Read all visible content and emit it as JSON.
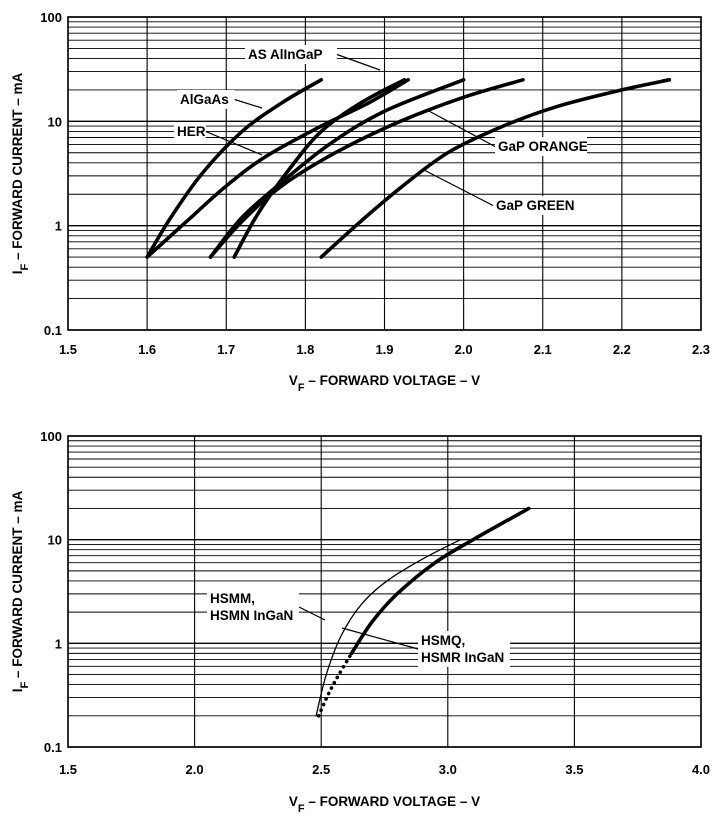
{
  "chart_data": [
    {
      "type": "line",
      "title": "",
      "xlabel": "VF – FORWARD VOLTAGE – V",
      "xlabel_parts": [
        "V",
        "F",
        " – FORWARD VOLTAGE – V"
      ],
      "ylabel": "IF – FORWARD CURRENT – mA",
      "ylabel_parts": [
        "I",
        "F",
        " – FORWARD CURRENT – mA"
      ],
      "xlim": [
        1.5,
        2.3
      ],
      "ylim": [
        0.1,
        100
      ],
      "yscale": "log",
      "grid": true,
      "x_ticks": [
        1.5,
        1.6,
        1.7,
        1.8,
        1.9,
        2.0,
        2.1,
        2.2,
        2.3
      ],
      "x_tick_labels": [
        "1.5",
        "1.6",
        "1.7",
        "1.8",
        "1.9",
        "2.0",
        "2.1",
        "2.2",
        "2.3"
      ],
      "y_ticks": [
        0.1,
        1,
        10,
        100
      ],
      "y_tick_labels": [
        "0.1",
        "1",
        "10",
        "100"
      ],
      "series": [
        {
          "name": "AlGaAs",
          "style": "thick",
          "x": [
            1.6,
            1.63,
            1.67,
            1.72,
            1.77,
            1.82
          ],
          "y": [
            0.5,
            1.2,
            3.2,
            8,
            15,
            25
          ]
        },
        {
          "name": "HER",
          "style": "thick",
          "x": [
            1.6,
            1.65,
            1.7,
            1.75,
            1.82,
            1.88,
            1.93
          ],
          "y": [
            0.5,
            1.1,
            2.4,
            4.6,
            9,
            15,
            25
          ]
        },
        {
          "name": "AS AlInGaP",
          "style": "thick",
          "x": [
            1.71,
            1.74,
            1.78,
            1.82,
            1.87,
            1.925
          ],
          "y": [
            0.5,
            1.3,
            3.5,
            8,
            15,
            25
          ]
        },
        {
          "name": "GaP ORANGE",
          "style": "thick",
          "x": [
            1.68,
            1.72,
            1.77,
            1.83,
            1.9,
            2.0
          ],
          "y": [
            0.5,
            1.2,
            2.6,
            6,
            12.5,
            25
          ]
        },
        {
          "name": "GaP GREEN",
          "style": "thick",
          "x": [
            1.68,
            1.72,
            1.77,
            1.84,
            1.92,
            2.0,
            2.075
          ],
          "y": [
            0.5,
            1.1,
            2.4,
            5.1,
            10,
            17,
            25
          ]
        },
        {
          "name": "",
          "style": "thick",
          "x": [
            1.82,
            1.87,
            1.92,
            1.98,
            2.05,
            2.12,
            2.2,
            2.26
          ],
          "y": [
            0.5,
            1.1,
            2.3,
            5,
            9,
            14,
            20,
            25
          ]
        }
      ],
      "annotations": [
        {
          "text": "AS AlInGaP",
          "series": "AS AlInGaP"
        },
        {
          "text": "AlGaAs",
          "series": "AlGaAs"
        },
        {
          "text": "HER",
          "series": "HER"
        },
        {
          "text": "GaP ORANGE",
          "series": "GaP ORANGE"
        },
        {
          "text": "GaP GREEN",
          "series": "GaP GREEN"
        }
      ]
    },
    {
      "type": "line",
      "title": "",
      "xlabel": "VF – FORWARD VOLTAGE – V",
      "xlabel_parts": [
        "V",
        "F",
        " – FORWARD VOLTAGE – V"
      ],
      "ylabel": "IF – FORWARD CURRENT – mA",
      "ylabel_parts": [
        "I",
        "F",
        " – FORWARD CURRENT – mA"
      ],
      "xlim": [
        1.5,
        4.0
      ],
      "ylim": [
        0.1,
        100
      ],
      "yscale": "log",
      "grid": true,
      "x_ticks": [
        1.5,
        2.0,
        2.5,
        3.0,
        3.5,
        4.0
      ],
      "x_tick_labels": [
        "1.5",
        "2.0",
        "2.5",
        "3.0",
        "3.5",
        "4.0"
      ],
      "y_ticks": [
        0.1,
        1,
        10,
        100
      ],
      "y_tick_labels": [
        "0.1",
        "1",
        "10",
        "100"
      ],
      "series": [
        {
          "name": "HSMM, HSMN InGaN",
          "style": "thin",
          "x": [
            2.48,
            2.52,
            2.58,
            2.66,
            2.76,
            2.9,
            3.05
          ],
          "y": [
            0.2,
            0.5,
            1.2,
            2.4,
            4,
            6.5,
            10
          ]
        },
        {
          "name": "HSMQ, HSMR InGaN",
          "style": "thick",
          "x": [
            2.62,
            2.7,
            2.8,
            2.95,
            3.1,
            3.32
          ],
          "y": [
            0.8,
            1.6,
            3,
            6,
            10,
            20
          ]
        },
        {
          "name": "HSMQ, HSMR InGaN",
          "style": "dotted",
          "x": [
            2.49,
            2.53,
            2.57,
            2.62
          ],
          "y": [
            0.2,
            0.33,
            0.5,
            0.8
          ]
        }
      ],
      "annotations": [
        {
          "lines": [
            "HSMM,",
            "HSMN InGaN"
          ],
          "series": "HSMM, HSMN InGaN"
        },
        {
          "lines": [
            "HSMQ,",
            "HSMR InGaN"
          ],
          "series": "HSMQ, HSMR InGaN"
        }
      ]
    }
  ]
}
